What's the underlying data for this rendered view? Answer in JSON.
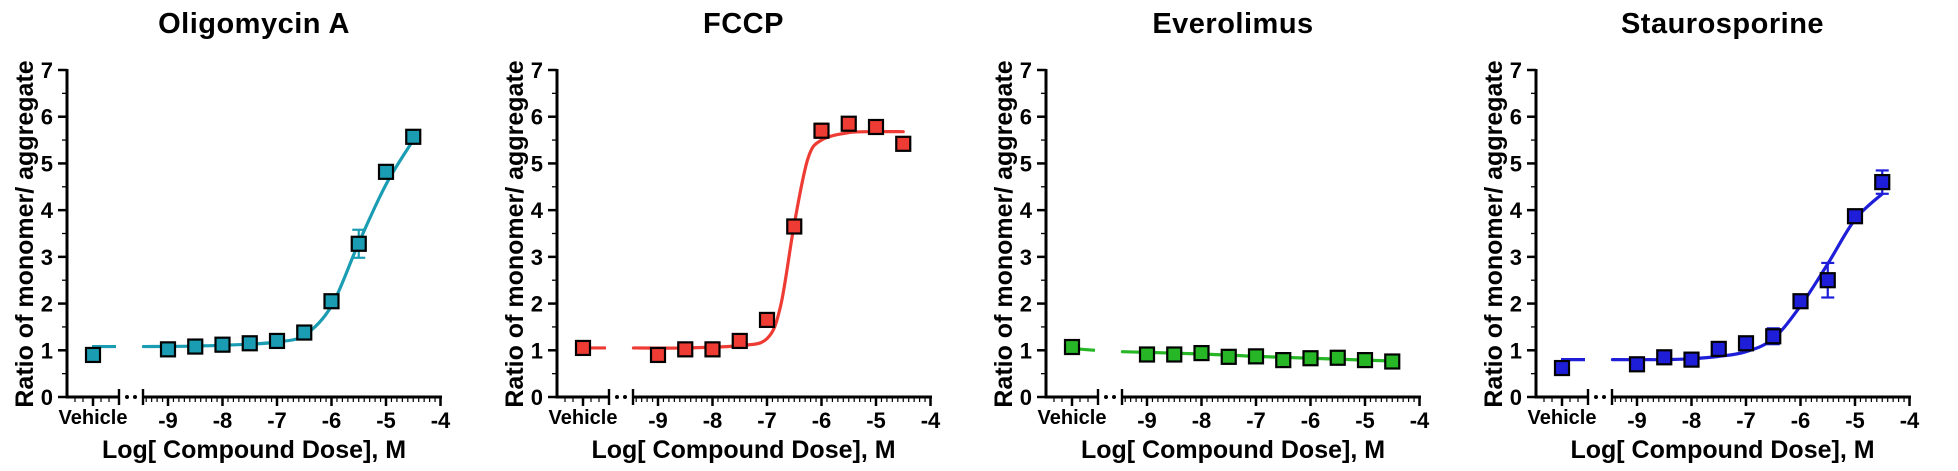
{
  "chart_data": {
    "type": "scatter",
    "description": "Dose-response curves of ratio of monomer/aggregate versus log compound dose, with vehicle control and axis break",
    "shared": {
      "ylabel": "Ratio of monomer/ aggregate",
      "xlabel": "Log[ Compound Dose], M",
      "ylim": [
        0,
        7
      ],
      "yticks": [
        0,
        1,
        2,
        3,
        4,
        5,
        6,
        7
      ],
      "xticks": [
        -9,
        -8,
        -7,
        -6,
        -5,
        -4
      ],
      "vehicle_label": "Vehicle",
      "axis_break": true,
      "grid": false,
      "legend": "none",
      "marker": "square"
    },
    "panels": [
      {
        "title": "Oligomycin A",
        "color": "#1A9DB3",
        "x": [
          "Vehicle",
          -9,
          -8.5,
          -8,
          -7.5,
          -7,
          -6.5,
          -6,
          -5.5,
          -5,
          -4.5
        ],
        "y": [
          0.9,
          1.02,
          1.08,
          1.12,
          1.15,
          1.2,
          1.38,
          2.05,
          3.28,
          4.82,
          5.57
        ],
        "err": [
          0,
          0,
          0,
          0,
          0,
          0,
          0,
          0,
          0.3,
          0,
          0
        ],
        "fit": {
          "vehicle_y": [
            1.08,
            1.08
          ],
          "x": [
            -9.45,
            -8.5,
            -7.5,
            -7,
            -6.5,
            -6,
            -5.5,
            -5,
            -4.5
          ],
          "y": [
            1.08,
            1.09,
            1.13,
            1.18,
            1.32,
            1.95,
            3.3,
            4.55,
            5.5
          ]
        }
      },
      {
        "title": "FCCP",
        "color": "#EE3B33",
        "x": [
          "Vehicle",
          -9,
          -8.5,
          -8,
          -7.5,
          -7,
          -6.5,
          -6,
          -5.5,
          -5,
          -4.5
        ],
        "y": [
          1.05,
          0.9,
          1.02,
          1.02,
          1.2,
          1.65,
          3.65,
          5.7,
          5.85,
          5.78,
          5.42
        ],
        "err": [
          0,
          0,
          0,
          0,
          0,
          0,
          0,
          0.15,
          0,
          0,
          0
        ],
        "fit": {
          "vehicle_y": [
            1.05,
            1.05
          ],
          "x": [
            -9.45,
            -8.5,
            -7.5,
            -7,
            -6.75,
            -6.5,
            -6.25,
            -6,
            -5.5,
            -5,
            -4.5
          ],
          "y": [
            1.05,
            1.05,
            1.1,
            1.25,
            1.95,
            3.7,
            5.1,
            5.5,
            5.66,
            5.68,
            5.68
          ]
        }
      },
      {
        "title": "Everolimus",
        "color": "#26B626",
        "x": [
          "Vehicle",
          -9,
          -8.5,
          -8,
          -7.5,
          -7,
          -6.5,
          -6,
          -5.5,
          -5,
          -4.5
        ],
        "y": [
          1.07,
          0.91,
          0.91,
          0.94,
          0.86,
          0.87,
          0.79,
          0.83,
          0.84,
          0.79,
          0.76
        ],
        "err": [
          0,
          0,
          0,
          0,
          0,
          0,
          0,
          0,
          0,
          0,
          0
        ],
        "fit": {
          "vehicle_y": [
            1.04,
            1.0
          ],
          "x": [
            -9.45,
            -8,
            -7,
            -6,
            -5,
            -4.5
          ],
          "y": [
            0.97,
            0.92,
            0.87,
            0.83,
            0.79,
            0.77
          ]
        }
      },
      {
        "title": "Staurosporine",
        "color": "#1E1ED9",
        "x": [
          "Vehicle",
          -9,
          -8.5,
          -8,
          -7.5,
          -7,
          -6.5,
          -6,
          -5.5,
          -5,
          -4.5
        ],
        "y": [
          0.62,
          0.7,
          0.85,
          0.8,
          1.03,
          1.15,
          1.3,
          2.05,
          2.5,
          3.87,
          4.6
        ],
        "err": [
          0,
          0,
          0,
          0,
          0,
          0,
          0.17,
          0.12,
          0.37,
          0.12,
          0.25
        ],
        "fit": {
          "vehicle_y": [
            0.8,
            0.8
          ],
          "x": [
            -9.45,
            -8.5,
            -8,
            -7.5,
            -7,
            -6.5,
            -6,
            -5.5,
            -5,
            -4.5
          ],
          "y": [
            0.8,
            0.8,
            0.82,
            0.87,
            0.97,
            1.25,
            1.95,
            2.85,
            3.8,
            4.35
          ]
        }
      }
    ]
  }
}
